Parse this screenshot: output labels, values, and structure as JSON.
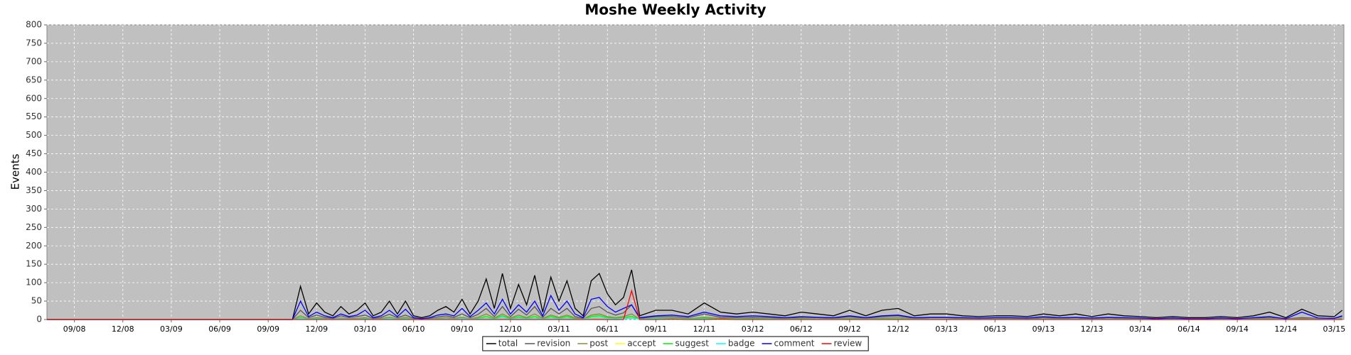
{
  "chart_data": {
    "type": "line",
    "title": "Moshe Weekly Activity",
    "y_label": "Events",
    "x": [
      6.3,
      21.5,
      22,
      22.5,
      23,
      23.5,
      24,
      24.5,
      25,
      25.5,
      26,
      26.5,
      27,
      27.5,
      28,
      28.5,
      29,
      29.5,
      30,
      30.5,
      31,
      31.5,
      32,
      32.5,
      33,
      33.5,
      34,
      34.5,
      35,
      35.5,
      36,
      36.5,
      37,
      37.5,
      38,
      38.5,
      39,
      39.5,
      40,
      40.5,
      41,
      41.5,
      42,
      42.5,
      43,
      44,
      45,
      46,
      47,
      48,
      49,
      50,
      51,
      52,
      53,
      54,
      55,
      56,
      57,
      58,
      59,
      60,
      61,
      62,
      63,
      64,
      65,
      66,
      67,
      68,
      69,
      70,
      71,
      72,
      73,
      74,
      75,
      76,
      77,
      78,
      79,
      80,
      81,
      82,
      83,
      84,
      85,
      86,
      86.5
    ],
    "series": [
      {
        "name": "total",
        "color": "#000000",
        "values": [
          0,
          0,
          90,
          15,
          45,
          20,
          10,
          35,
          15,
          25,
          45,
          10,
          20,
          50,
          15,
          50,
          10,
          5,
          10,
          25,
          35,
          20,
          55,
          15,
          50,
          110,
          30,
          125,
          30,
          95,
          40,
          120,
          20,
          115,
          50,
          105,
          30,
          10,
          105,
          125,
          70,
          40,
          60,
          135,
          10,
          25,
          25,
          15,
          45,
          20,
          15,
          20,
          15,
          10,
          20,
          15,
          10,
          25,
          10,
          25,
          30,
          10,
          15,
          15,
          10,
          8,
          10,
          10,
          8,
          15,
          10,
          15,
          8,
          15,
          10,
          8,
          5,
          8,
          5,
          5,
          8,
          5,
          10,
          20,
          5,
          28,
          10,
          8,
          25
        ]
      },
      {
        "name": "revision",
        "color": "#555555",
        "values": [
          0,
          0,
          25,
          5,
          12,
          6,
          3,
          10,
          5,
          8,
          12,
          3,
          6,
          14,
          5,
          12,
          3,
          2,
          3,
          7,
          10,
          6,
          15,
          5,
          14,
          30,
          8,
          35,
          8,
          28,
          12,
          35,
          6,
          30,
          15,
          30,
          8,
          3,
          30,
          35,
          20,
          12,
          18,
          40,
          3,
          8,
          8,
          5,
          15,
          6,
          5,
          6,
          5,
          3,
          6,
          5,
          3,
          8,
          3,
          8,
          10,
          3,
          5,
          5,
          3,
          2,
          3,
          3,
          2,
          5,
          3,
          5,
          2,
          5,
          3,
          2,
          2,
          2,
          2,
          2,
          2,
          2,
          3,
          6,
          2,
          5,
          3,
          3,
          8
        ]
      },
      {
        "name": "post",
        "color": "#8a8a3c",
        "values": [
          0,
          0,
          10,
          2,
          5,
          3,
          1,
          4,
          2,
          3,
          5,
          1,
          3,
          6,
          2,
          6,
          1,
          1,
          1,
          3,
          5,
          3,
          6,
          2,
          6,
          15,
          4,
          15,
          4,
          12,
          5,
          15,
          3,
          12,
          6,
          12,
          4,
          1,
          12,
          15,
          8,
          5,
          8,
          15,
          1,
          4,
          4,
          2,
          6,
          3,
          2,
          3,
          2,
          2,
          3,
          2,
          2,
          4,
          2,
          4,
          5,
          2,
          2,
          2,
          2,
          1,
          2,
          2,
          1,
          2,
          2,
          2,
          1,
          2,
          2,
          1,
          1,
          1,
          1,
          1,
          1,
          1,
          2,
          3,
          1,
          3,
          2,
          1,
          3
        ]
      },
      {
        "name": "accept",
        "color": "#ffff00",
        "values": [
          0,
          0,
          3,
          0,
          2,
          1,
          0,
          1,
          0,
          1,
          2,
          0,
          1,
          3,
          0,
          2,
          0,
          0,
          0,
          1,
          2,
          1,
          3,
          0,
          2,
          6,
          1,
          5,
          1,
          4,
          2,
          6,
          1,
          5,
          2,
          5,
          1,
          0,
          5,
          6,
          3,
          2,
          3,
          5,
          0,
          2,
          2,
          1,
          3,
          1,
          1,
          1,
          1,
          0,
          1,
          1,
          0,
          1,
          0,
          1,
          2,
          0,
          1,
          1,
          0,
          0,
          1,
          0,
          0,
          1,
          0,
          1,
          0,
          1,
          0,
          0,
          0,
          0,
          0,
          0,
          0,
          0,
          0,
          0,
          1,
          0,
          1,
          0,
          1
        ]
      },
      {
        "name": "suggest",
        "color": "#00ee00",
        "values": [
          0,
          0,
          5,
          1,
          3,
          1,
          0,
          2,
          1,
          1,
          3,
          0,
          1,
          4,
          1,
          3,
          0,
          0,
          0,
          2,
          2,
          1,
          4,
          1,
          3,
          8,
          2,
          10,
          2,
          7,
          3,
          8,
          1,
          8,
          3,
          8,
          2,
          0,
          8,
          10,
          5,
          3,
          5,
          8,
          1,
          3,
          3,
          2,
          4,
          2,
          2,
          2,
          2,
          1,
          2,
          1,
          1,
          2,
          1,
          2,
          2,
          1,
          1,
          1,
          1,
          0,
          1,
          1,
          0,
          1,
          1,
          1,
          0,
          1,
          1,
          0,
          0,
          0,
          0,
          0,
          0,
          0,
          1,
          1,
          0,
          1,
          0,
          0,
          1
        ]
      },
      {
        "name": "badge",
        "color": "#00ffff",
        "values": [
          0,
          0,
          3,
          1,
          2,
          1,
          1,
          2,
          1,
          1,
          2,
          1,
          1,
          3,
          1,
          2,
          1,
          0,
          1,
          1,
          2,
          1,
          3,
          1,
          2,
          4,
          1,
          5,
          1,
          4,
          2,
          4,
          1,
          4,
          2,
          4,
          1,
          1,
          4,
          5,
          3,
          2,
          3,
          4,
          1,
          2,
          2,
          1,
          2,
          1,
          1,
          1,
          1,
          1,
          1,
          1,
          1,
          1,
          1,
          1,
          1,
          1,
          1,
          1,
          1,
          1,
          1,
          1,
          1,
          1,
          1,
          1,
          1,
          1,
          1,
          1,
          1,
          1,
          1,
          1,
          1,
          1,
          1,
          1,
          1,
          1,
          1,
          1,
          1
        ]
      },
      {
        "name": "comment",
        "color": "#0000ff",
        "values": [
          0,
          0,
          50,
          8,
          20,
          10,
          5,
          15,
          8,
          12,
          25,
          5,
          10,
          25,
          8,
          28,
          5,
          2,
          5,
          12,
          15,
          10,
          30,
          8,
          25,
          45,
          15,
          55,
          15,
          40,
          20,
          50,
          10,
          65,
          25,
          50,
          15,
          5,
          55,
          60,
          35,
          20,
          30,
          40,
          5,
          10,
          12,
          8,
          20,
          10,
          8,
          10,
          8,
          5,
          8,
          6,
          5,
          10,
          5,
          10,
          12,
          5,
          6,
          6,
          5,
          4,
          5,
          5,
          4,
          8,
          5,
          6,
          4,
          6,
          5,
          4,
          2,
          4,
          2,
          2,
          4,
          2,
          5,
          8,
          2,
          20,
          4,
          3,
          10
        ]
      },
      {
        "name": "review",
        "color": "#ff0000",
        "values": [
          0,
          0,
          0,
          0,
          0,
          0,
          0,
          0,
          0,
          0,
          0,
          0,
          0,
          0,
          0,
          0,
          0,
          0,
          0,
          0,
          0,
          0,
          0,
          0,
          0,
          0,
          0,
          0,
          0,
          0,
          0,
          0,
          0,
          0,
          0,
          0,
          0,
          0,
          0,
          0,
          0,
          0,
          0,
          78,
          0,
          0,
          1,
          0,
          0,
          1,
          0,
          0,
          0,
          0,
          0,
          0,
          0,
          0,
          0,
          0,
          0,
          0,
          0,
          0,
          0,
          0,
          0,
          0,
          0,
          0,
          0,
          0,
          0,
          0,
          0,
          0,
          0,
          0,
          0,
          0,
          0,
          0,
          0,
          0,
          0,
          0,
          0,
          0,
          0
        ]
      }
    ],
    "xlim": [
      6.3,
      86.6
    ],
    "xticks": [
      {
        "value": 8,
        "label": "09/08"
      },
      {
        "value": 11,
        "label": "12/08"
      },
      {
        "value": 14,
        "label": "03/09"
      },
      {
        "value": 17,
        "label": "06/09"
      },
      {
        "value": 20,
        "label": "09/09"
      },
      {
        "value": 23,
        "label": "12/09"
      },
      {
        "value": 26,
        "label": "03/10"
      },
      {
        "value": 29,
        "label": "06/10"
      },
      {
        "value": 32,
        "label": "09/10"
      },
      {
        "value": 35,
        "label": "12/10"
      },
      {
        "value": 38,
        "label": "03/11"
      },
      {
        "value": 41,
        "label": "06/11"
      },
      {
        "value": 44,
        "label": "09/11"
      },
      {
        "value": 47,
        "label": "12/11"
      },
      {
        "value": 50,
        "label": "03/12"
      },
      {
        "value": 53,
        "label": "06/12"
      },
      {
        "value": 56,
        "label": "09/12"
      },
      {
        "value": 59,
        "label": "12/12"
      },
      {
        "value": 62,
        "label": "03/13"
      },
      {
        "value": 65,
        "label": "06/13"
      },
      {
        "value": 68,
        "label": "09/13"
      },
      {
        "value": 71,
        "label": "12/13"
      },
      {
        "value": 74,
        "label": "03/14"
      },
      {
        "value": 77,
        "label": "06/14"
      },
      {
        "value": 80,
        "label": "09/14"
      },
      {
        "value": 83,
        "label": "12/14"
      },
      {
        "value": 86,
        "label": "03/15"
      }
    ],
    "ylim": [
      0,
      800
    ],
    "yticks": [
      0,
      50,
      100,
      150,
      200,
      250,
      300,
      350,
      400,
      450,
      500,
      550,
      600,
      650,
      700,
      750,
      800
    ],
    "grid": true,
    "legend": "bottom"
  }
}
